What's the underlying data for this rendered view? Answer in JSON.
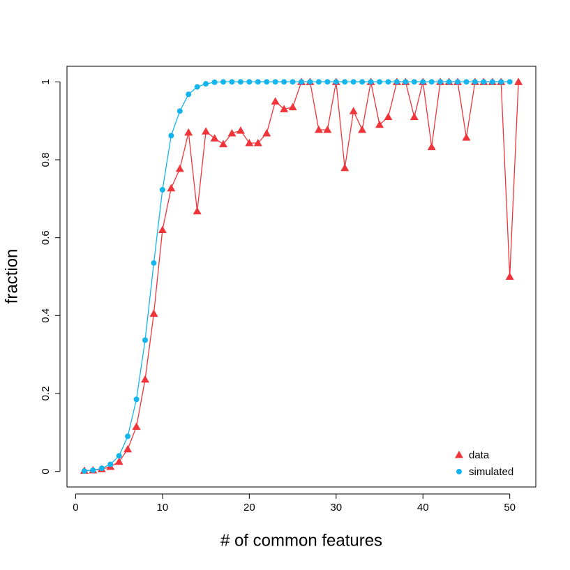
{
  "chart_data": {
    "type": "line",
    "x_label": "# of common features",
    "y_label": "fraction",
    "xlim": [
      -1,
      53
    ],
    "ylim": [
      -0.04,
      1.04
    ],
    "xticks": [
      0,
      10,
      20,
      30,
      40,
      50
    ],
    "yticks": [
      0,
      0.2,
      0.4,
      0.6,
      0.8,
      1
    ],
    "grid": false,
    "legend": "bottom-right",
    "series": [
      {
        "name": "data",
        "color": "#f0353a",
        "marker": "triangle",
        "x": [
          1,
          2,
          3,
          4,
          5,
          6,
          7,
          8,
          9,
          10,
          11,
          12,
          13,
          14,
          15,
          16,
          17,
          18,
          19,
          20,
          21,
          22,
          23,
          24,
          25,
          26,
          27,
          28,
          29,
          30,
          31,
          32,
          33,
          34,
          35,
          36,
          37,
          38,
          39,
          40,
          41,
          42,
          43,
          44,
          45,
          46,
          47,
          48,
          49,
          50,
          51
        ],
        "values": [
          0.002,
          0.003,
          0.006,
          0.012,
          0.025,
          0.057,
          0.115,
          0.236,
          0.405,
          0.62,
          0.727,
          0.777,
          0.87,
          0.668,
          0.873,
          0.855,
          0.84,
          0.868,
          0.875,
          0.843,
          0.843,
          0.868,
          0.95,
          0.93,
          0.935,
          1,
          1,
          0.877,
          0.877,
          1,
          0.779,
          0.925,
          0.877,
          1,
          0.89,
          0.91,
          1,
          1,
          0.91,
          1,
          0.833,
          1,
          1,
          1,
          0.857,
          1,
          1,
          1,
          1,
          0.5,
          1
        ]
      },
      {
        "name": "simulated",
        "color": "#14b4ec",
        "marker": "circle",
        "x": [
          1,
          2,
          3,
          4,
          5,
          6,
          7,
          8,
          9,
          10,
          11,
          12,
          13,
          14,
          15,
          16,
          17,
          18,
          19,
          20,
          21,
          22,
          23,
          24,
          25,
          26,
          27,
          28,
          29,
          30,
          31,
          32,
          33,
          34,
          35,
          36,
          37,
          38,
          39,
          40,
          41,
          42,
          43,
          44,
          45,
          46,
          47,
          48,
          49,
          50
        ],
        "values": [
          0.001,
          0.003,
          0.008,
          0.018,
          0.04,
          0.09,
          0.185,
          0.337,
          0.535,
          0.723,
          0.862,
          0.925,
          0.968,
          0.987,
          0.995,
          0.999,
          1,
          1,
          1,
          1,
          1,
          1,
          1,
          1,
          1,
          1,
          1,
          1,
          1,
          1,
          1,
          1,
          1,
          1,
          1,
          1,
          1,
          1,
          1,
          1,
          1,
          1,
          1,
          1,
          1,
          1,
          1,
          1,
          1,
          1
        ]
      }
    ]
  }
}
